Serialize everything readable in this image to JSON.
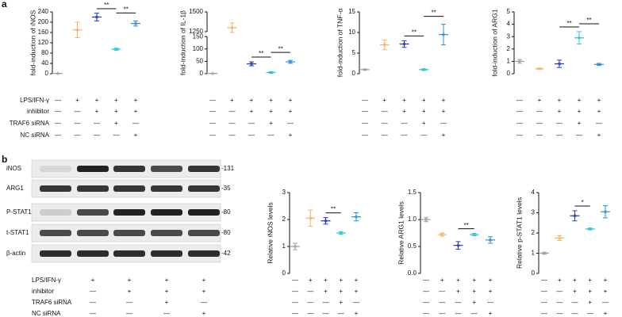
{
  "panel_labels": [
    "a",
    "b"
  ],
  "treatments": [
    {
      "label": "LPS/IFN-γ",
      "marks": [
        "—",
        "+",
        "+",
        "+",
        "+"
      ]
    },
    {
      "label": "inhibitor",
      "marks": [
        "—",
        "—",
        "+",
        "+",
        "+"
      ]
    },
    {
      "label": "TRAF6 siRNA",
      "marks": [
        "—",
        "—",
        "—",
        "+",
        "—"
      ]
    },
    {
      "label": "NC siRNA",
      "marks": [
        "—",
        "—",
        "—",
        "—",
        "+"
      ]
    }
  ],
  "blot": {
    "proteins": [
      "iNOS",
      "ARG1",
      "P-STAT1",
      "t-STAT1",
      "β-actin"
    ],
    "kda": [
      "-131",
      "-35",
      "-80",
      "-80",
      "-42"
    ]
  },
  "chart_data": [
    {
      "type": "dot",
      "ylabel": "fold-induction of iNOS",
      "categories": [
        null,
        null,
        null,
        null,
        null
      ],
      "values": [
        1,
        170,
        220,
        95,
        195
      ],
      "errors": [
        0.5,
        30,
        15,
        4,
        10
      ],
      "colors": [
        "#a0a0a0",
        "#f4b26a",
        "#2237b8",
        "#2bc3d8",
        "#2f8fd0"
      ],
      "ylim": [
        0,
        240
      ],
      "yticks": [
        0,
        40,
        80,
        120,
        160,
        200,
        240
      ],
      "annotations": [
        {
          "from": 2,
          "to": 3,
          "label": "**"
        },
        {
          "from": 3,
          "to": 4,
          "label": "**"
        }
      ]
    },
    {
      "type": "dot",
      "ylabel": "fold-induction of IL-1β",
      "categories": [
        null,
        null,
        null,
        null,
        null
      ],
      "values": [
        1,
        1300,
        40,
        5,
        48
      ],
      "errors": [
        0.5,
        60,
        8,
        3,
        6
      ],
      "colors": [
        "#a0a0a0",
        "#f4b26a",
        "#2237b8",
        "#2bc3d8",
        "#2f8fd0"
      ],
      "ylim": [
        0,
        1500
      ],
      "ybreak": [
        150,
        1250
      ],
      "yticks": [
        0,
        50,
        100,
        150,
        1250,
        1500
      ],
      "annotations": [
        {
          "from": 2,
          "to": 3,
          "label": "**"
        },
        {
          "from": 3,
          "to": 4,
          "label": "**"
        }
      ]
    },
    {
      "type": "dot",
      "ylabel": "fold-induction of TNF-α",
      "categories": [
        null,
        null,
        null,
        null,
        null
      ],
      "values": [
        1,
        7,
        7.2,
        1,
        9.5
      ],
      "errors": [
        0.1,
        1.2,
        0.8,
        0.2,
        2.5
      ],
      "colors": [
        "#a0a0a0",
        "#f4b26a",
        "#2237b8",
        "#2bc3d8",
        "#2f8fd0"
      ],
      "ylim": [
        0,
        15
      ],
      "yticks": [
        0,
        5,
        10,
        15
      ],
      "annotations": [
        {
          "from": 2,
          "to": 3,
          "label": "**"
        },
        {
          "from": 3,
          "to": 4,
          "label": "**"
        }
      ]
    },
    {
      "type": "dot",
      "ylabel": "fold-induction of ARG1",
      "categories": [
        null,
        null,
        null,
        null,
        null
      ],
      "values": [
        1,
        0.4,
        0.8,
        2.9,
        0.75
      ],
      "errors": [
        0.15,
        0.05,
        0.3,
        0.5,
        0.08
      ],
      "colors": [
        "#a0a0a0",
        "#f4b26a",
        "#2237b8",
        "#2bc3d8",
        "#2f8fd0"
      ],
      "ylim": [
        0,
        5
      ],
      "yticks": [
        0,
        1,
        2,
        3,
        4,
        5
      ],
      "annotations": [
        {
          "from": 2,
          "to": 3,
          "label": "**"
        },
        {
          "from": 3,
          "to": 4,
          "label": "**"
        }
      ]
    },
    {
      "type": "dot",
      "ylabel": "Relative iNOS levels",
      "categories": [
        null,
        null,
        null,
        null,
        null
      ],
      "values": [
        1,
        2.05,
        1.95,
        1.5,
        2.1
      ],
      "errors": [
        0.12,
        0.3,
        0.12,
        0.05,
        0.15
      ],
      "colors": [
        "#a0a0a0",
        "#f4b26a",
        "#2237b8",
        "#2bc3d8",
        "#2f8fd0"
      ],
      "ylim": [
        0,
        3
      ],
      "yticks": [
        0,
        1,
        2,
        3
      ],
      "annotations": [
        {
          "from": 2,
          "to": 3,
          "label": "**"
        }
      ]
    },
    {
      "type": "dot",
      "ylabel": "Relative ARG1 levels",
      "categories": [
        null,
        null,
        null,
        null,
        null
      ],
      "values": [
        1,
        0.72,
        0.52,
        0.72,
        0.62
      ],
      "errors": [
        0.04,
        0.03,
        0.07,
        0.02,
        0.06
      ],
      "colors": [
        "#a0a0a0",
        "#f4b26a",
        "#2237b8",
        "#2bc3d8",
        "#2f8fd0"
      ],
      "ylim": [
        0,
        1.5
      ],
      "yticks": [
        {
          "value": 0,
          "label": "0.0"
        },
        0.5,
        {
          "value": 1,
          "label": "1.0"
        },
        1.5
      ],
      "annotations": [
        {
          "from": 2,
          "to": 3,
          "label": "**"
        }
      ]
    },
    {
      "type": "dot",
      "ylabel": "Relative p-STAT1 levels",
      "categories": [
        null,
        null,
        null,
        null,
        null
      ],
      "values": [
        1,
        1.75,
        2.85,
        2.2,
        3.05
      ],
      "errors": [
        0.05,
        0.12,
        0.25,
        0.04,
        0.3
      ],
      "colors": [
        "#a0a0a0",
        "#f4b26a",
        "#2237b8",
        "#2bc3d8",
        "#2f8fd0"
      ],
      "ylim": [
        0,
        4
      ],
      "yticks": [
        0,
        1,
        2,
        3,
        4
      ],
      "annotations": [
        {
          "from": 2,
          "to": 3,
          "label": "*"
        }
      ]
    }
  ]
}
